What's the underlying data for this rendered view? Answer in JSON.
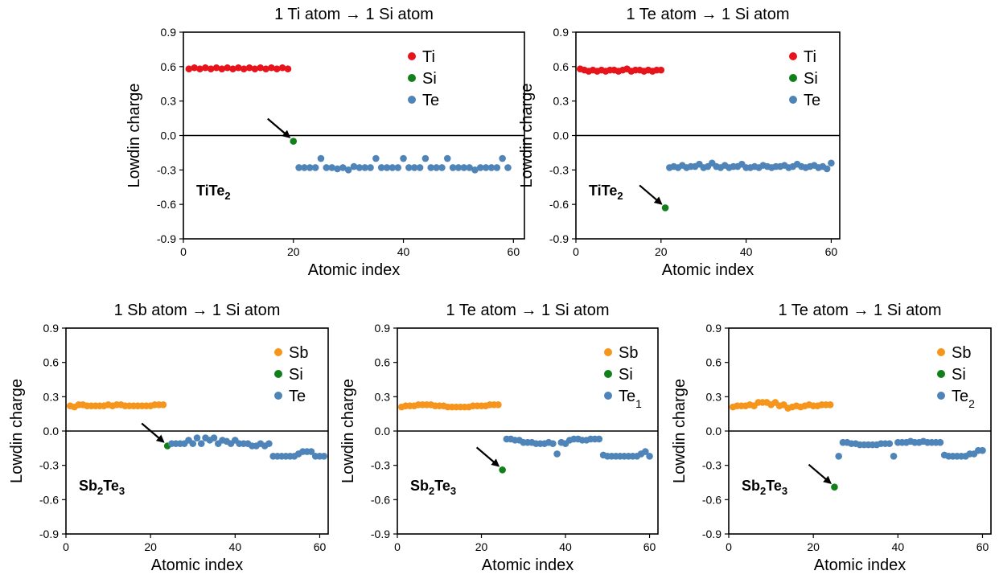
{
  "colors": {
    "Ti": "#e8141c",
    "Si": "#12801a",
    "Te": "#4f84b8",
    "Sb": "#f6951c"
  },
  "chart_data": [
    {
      "type": "scatter",
      "title": "1 Ti atom → 1 Si atom",
      "xlabel": "Atomic index",
      "ylabel": "Lowdin charge",
      "material": {
        "base": "TiTe",
        "sub": "2"
      },
      "xlim": [
        0,
        62
      ],
      "ylim": [
        -0.9,
        0.9
      ],
      "xticks": [
        "0",
        "20",
        "40",
        "60"
      ],
      "yticks": [
        "0.9",
        "0.6",
        "0.3",
        "0.0",
        "-0.3",
        "-0.6",
        "-0.9"
      ],
      "legend": "top-right",
      "arrow_to_index": 20,
      "series": [
        {
          "name": "Ti",
          "color_key": "Ti",
          "x_start": 1,
          "values": [
            0.58,
            0.59,
            0.58,
            0.59,
            0.58,
            0.59,
            0.58,
            0.59,
            0.58,
            0.59,
            0.58,
            0.59,
            0.58,
            0.59,
            0.58,
            0.59,
            0.58,
            0.59,
            0.58
          ]
        },
        {
          "name": "Si",
          "color_key": "Si",
          "x_start": 20,
          "values": [
            -0.05
          ]
        },
        {
          "name": "Te",
          "color_key": "Te",
          "x_start": 21,
          "values": [
            -0.28,
            -0.28,
            -0.28,
            -0.28,
            -0.2,
            -0.28,
            -0.28,
            -0.29,
            -0.28,
            -0.3,
            -0.27,
            -0.28,
            -0.28,
            -0.28,
            -0.2,
            -0.28,
            -0.28,
            -0.28,
            -0.28,
            -0.2,
            -0.28,
            -0.28,
            -0.28,
            -0.2,
            -0.28,
            -0.28,
            -0.28,
            -0.2,
            -0.28,
            -0.28,
            -0.28,
            -0.28,
            -0.3,
            -0.28,
            -0.28,
            -0.28,
            -0.28,
            -0.2,
            -0.28
          ]
        }
      ]
    },
    {
      "type": "scatter",
      "title": "1 Te atom → 1 Si atom",
      "xlabel": "Atomic index",
      "ylabel": "Lowdin charge",
      "material": {
        "base": "TiTe",
        "sub": "2"
      },
      "xlim": [
        0,
        62
      ],
      "ylim": [
        -0.9,
        0.9
      ],
      "xticks": [
        "0",
        "20",
        "40",
        "60"
      ],
      "yticks": [
        "0.9",
        "0.6",
        "0.3",
        "0.0",
        "-0.3",
        "-0.6",
        "-0.9"
      ],
      "legend": "top-right",
      "arrow_to_index": 21,
      "series": [
        {
          "name": "Ti",
          "color_key": "Ti",
          "x_start": 1,
          "values": [
            0.58,
            0.57,
            0.56,
            0.57,
            0.56,
            0.57,
            0.56,
            0.57,
            0.57,
            0.56,
            0.57,
            0.58,
            0.56,
            0.57,
            0.57,
            0.56,
            0.57,
            0.56,
            0.57,
            0.57
          ]
        },
        {
          "name": "Si",
          "color_key": "Si",
          "x_start": 21,
          "values": [
            -0.63
          ]
        },
        {
          "name": "Te",
          "color_key": "Te",
          "x_start": 22,
          "values": [
            -0.28,
            -0.27,
            -0.28,
            -0.26,
            -0.28,
            -0.27,
            -0.27,
            -0.25,
            -0.28,
            -0.27,
            -0.24,
            -0.27,
            -0.28,
            -0.26,
            -0.28,
            -0.27,
            -0.27,
            -0.25,
            -0.28,
            -0.28,
            -0.27,
            -0.28,
            -0.26,
            -0.27,
            -0.28,
            -0.27,
            -0.27,
            -0.26,
            -0.28,
            -0.27,
            -0.25,
            -0.27,
            -0.28,
            -0.27,
            -0.26,
            -0.28,
            -0.27,
            -0.29,
            -0.24
          ]
        }
      ]
    },
    {
      "type": "scatter",
      "title": "1 Sb atom → 1 Si atom",
      "xlabel": "Atomic index",
      "ylabel": "Lowdin charge",
      "material": {
        "base": "Sb",
        "sub": "2",
        "base2": "Te",
        "sub2": "3"
      },
      "xlim": [
        0,
        62
      ],
      "ylim": [
        -0.9,
        0.9
      ],
      "xticks": [
        "0",
        "20",
        "40",
        "60"
      ],
      "yticks": [
        "0.9",
        "0.6",
        "0.3",
        "0.0",
        "-0.3",
        "-0.6",
        "-0.9"
      ],
      "legend": "top-right",
      "arrow_to_index": 24,
      "series": [
        {
          "name": "Sb",
          "color_key": "Sb",
          "x_start": 1,
          "values": [
            0.22,
            0.21,
            0.23,
            0.23,
            0.22,
            0.22,
            0.22,
            0.22,
            0.22,
            0.23,
            0.22,
            0.23,
            0.23,
            0.22,
            0.22,
            0.22,
            0.22,
            0.22,
            0.22,
            0.22,
            0.23,
            0.23,
            0.23
          ]
        },
        {
          "name": "Si",
          "color_key": "Si",
          "x_start": 24,
          "values": [
            -0.13
          ]
        },
        {
          "name": "Te",
          "color_key": "Te",
          "x_start": 25,
          "values": [
            -0.11,
            -0.11,
            -0.11,
            -0.11,
            -0.08,
            -0.11,
            -0.06,
            -0.11,
            -0.06,
            -0.08,
            -0.06,
            -0.11,
            -0.08,
            -0.09,
            -0.11,
            -0.08,
            -0.11,
            -0.11,
            -0.11,
            -0.13,
            -0.13,
            -0.11,
            -0.13,
            -0.11,
            -0.22,
            -0.22,
            -0.22,
            -0.22,
            -0.22,
            -0.22,
            -0.2,
            -0.18,
            -0.18,
            -0.18,
            -0.22,
            -0.22,
            -0.22
          ]
        }
      ]
    },
    {
      "type": "scatter",
      "title": "1 Te atom → 1 Si atom",
      "xlabel": "Atomic index",
      "ylabel": "Lowdin charge",
      "material": {
        "base": "Sb",
        "sub": "2",
        "base2": "Te",
        "sub2": "3"
      },
      "xlim": [
        0,
        62
      ],
      "ylim": [
        -0.9,
        0.9
      ],
      "xticks": [
        "0",
        "20",
        "40",
        "60"
      ],
      "yticks": [
        "0.9",
        "0.6",
        "0.3",
        "0.0",
        "-0.3",
        "-0.6",
        "-0.9"
      ],
      "legend": "top-right",
      "legend_last_sub": "1",
      "arrow_to_index": 25,
      "series": [
        {
          "name": "Sb",
          "color_key": "Sb",
          "x_start": 1,
          "values": [
            0.21,
            0.22,
            0.22,
            0.22,
            0.23,
            0.23,
            0.23,
            0.23,
            0.22,
            0.22,
            0.22,
            0.21,
            0.21,
            0.21,
            0.21,
            0.21,
            0.21,
            0.22,
            0.22,
            0.22,
            0.22,
            0.23,
            0.23,
            0.23
          ]
        },
        {
          "name": "Si",
          "color_key": "Si",
          "x_start": 25,
          "values": [
            -0.34
          ]
        },
        {
          "name": "Te",
          "color_key": "Te",
          "x_start": 26,
          "values": [
            -0.07,
            -0.07,
            -0.08,
            -0.08,
            -0.1,
            -0.1,
            -0.1,
            -0.11,
            -0.11,
            -0.11,
            -0.1,
            -0.11,
            -0.2,
            -0.1,
            -0.11,
            -0.08,
            -0.07,
            -0.07,
            -0.08,
            -0.08,
            -0.07,
            -0.07,
            -0.07,
            -0.21,
            -0.22,
            -0.22,
            -0.22,
            -0.22,
            -0.22,
            -0.22,
            -0.22,
            -0.22,
            -0.2,
            -0.18,
            -0.22
          ]
        }
      ]
    },
    {
      "type": "scatter",
      "title": "1 Te atom → 1 Si atom",
      "xlabel": "Atomic index",
      "ylabel": "Lowdin charge",
      "material": {
        "base": "Sb",
        "sub": "2",
        "base2": "Te",
        "sub2": "3"
      },
      "xlim": [
        0,
        62
      ],
      "ylim": [
        -0.9,
        0.9
      ],
      "xticks": [
        "0",
        "20",
        "40",
        "60"
      ],
      "yticks": [
        "0.9",
        "0.6",
        "0.3",
        "0.0",
        "-0.3",
        "-0.6",
        "-0.9"
      ],
      "legend": "top-right",
      "legend_last_sub": "2",
      "arrow_to_index": 25,
      "series": [
        {
          "name": "Sb",
          "color_key": "Sb",
          "x_start": 1,
          "values": [
            0.21,
            0.22,
            0.22,
            0.22,
            0.23,
            0.22,
            0.25,
            0.25,
            0.25,
            0.23,
            0.25,
            0.22,
            0.23,
            0.2,
            0.21,
            0.22,
            0.21,
            0.22,
            0.23,
            0.22,
            0.22,
            0.23,
            0.23,
            0.23
          ]
        },
        {
          "name": "Si",
          "color_key": "Si",
          "x_start": 25,
          "values": [
            -0.49
          ]
        },
        {
          "name": "Te",
          "color_key": "Te",
          "x_start": 26,
          "values": [
            -0.22,
            -0.1,
            -0.1,
            -0.11,
            -0.11,
            -0.12,
            -0.12,
            -0.12,
            -0.12,
            -0.12,
            -0.11,
            -0.11,
            -0.11,
            -0.22,
            -0.1,
            -0.1,
            -0.1,
            -0.09,
            -0.1,
            -0.1,
            -0.09,
            -0.1,
            -0.1,
            -0.1,
            -0.1,
            -0.21,
            -0.22,
            -0.22,
            -0.22,
            -0.22,
            -0.22,
            -0.2,
            -0.2,
            -0.17,
            -0.17
          ]
        }
      ]
    }
  ]
}
